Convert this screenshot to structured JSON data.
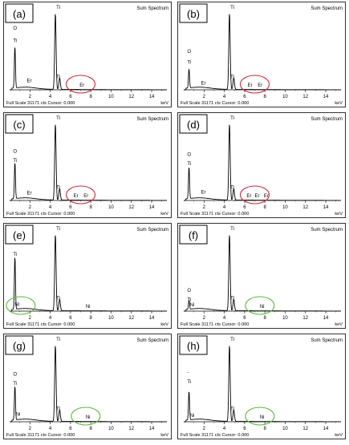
{
  "figure": {
    "spectrum_title": "Sum Spectrum",
    "footer": "Full Scale 31171 cts Cursor: 0.000",
    "unit": "keV"
  },
  "chart_data": [
    {
      "type": "line",
      "panel": "(a)",
      "title": "Sum Spectrum",
      "xlabel": "keV",
      "xlim": [
        0,
        15.5
      ],
      "ylim": [
        0,
        31171
      ],
      "x_ticks": [
        2,
        4,
        6,
        8,
        10,
        12,
        14
      ],
      "series": [
        {
          "peaks": [
            {
              "element": "O",
              "keV": 0.52,
              "height": 0.55
            },
            {
              "element": "Ti",
              "keV": 4.51,
              "height": 1.0
            },
            {
              "element": "Ti",
              "keV": 4.93,
              "height": 0.15
            }
          ]
        }
      ],
      "labels": [
        {
          "text": "O",
          "keV": 0.35,
          "level": 0.78
        },
        {
          "text": "Ti",
          "keV": 0.35,
          "level": 0.62
        },
        {
          "text": "Er",
          "keV": 1.7,
          "level": 0.1
        },
        {
          "text": "Ti",
          "keV": 4.6,
          "level": 1.05
        },
        {
          "text": "Ti",
          "keV": 4.6,
          "level": 0.15
        },
        {
          "text": "Er",
          "keV": 6.9,
          "level": 0.04
        }
      ],
      "highlight": {
        "center_keV": 7.0,
        "color": "#cc2a36"
      }
    },
    {
      "type": "line",
      "panel": "(b)",
      "title": "Sum Spectrum",
      "xlabel": "keV",
      "xlim": [
        0,
        15.5
      ],
      "ylim": [
        0,
        31171
      ],
      "x_ticks": [
        2,
        4,
        6,
        8,
        10,
        12,
        14
      ],
      "series": [
        {
          "peaks": [
            {
              "element": "O",
              "keV": 0.52,
              "height": 0.25
            },
            {
              "element": "Ti",
              "keV": 4.51,
              "height": 1.0
            },
            {
              "element": "Ti",
              "keV": 4.93,
              "height": 0.15
            }
          ]
        }
      ],
      "labels": [
        {
          "text": "O",
          "keV": 0.35,
          "level": 0.48
        },
        {
          "text": "Ti",
          "keV": 0.35,
          "level": 0.34
        },
        {
          "text": "Er",
          "keV": 1.7,
          "level": 0.07
        },
        {
          "text": "Ti",
          "keV": 4.6,
          "level": 1.05
        },
        {
          "text": "Ti",
          "keV": 4.6,
          "level": 0.15
        },
        {
          "text": "Er",
          "keV": 6.3,
          "level": 0.04
        },
        {
          "text": "Er",
          "keV": 7.3,
          "level": 0.04
        }
      ],
      "highlight": {
        "center_keV": 7.0,
        "color": "#cc2a36"
      }
    },
    {
      "type": "line",
      "panel": "(c)",
      "title": "Sum Spectrum",
      "xlabel": "keV",
      "xlim": [
        0,
        15.5
      ],
      "ylim": [
        0,
        31171
      ],
      "x_ticks": [
        2,
        4,
        6,
        8,
        10,
        12,
        14
      ],
      "series": [
        {
          "peaks": [
            {
              "element": "O",
              "keV": 0.52,
              "height": 0.48
            },
            {
              "element": "Ti",
              "keV": 4.51,
              "height": 1.0
            },
            {
              "element": "Ti",
              "keV": 4.93,
              "height": 0.15
            }
          ]
        }
      ],
      "labels": [
        {
          "text": "O",
          "keV": 0.35,
          "level": 0.62
        },
        {
          "text": "Ti",
          "keV": 0.35,
          "level": 0.5
        },
        {
          "text": "Er",
          "keV": 1.7,
          "level": 0.08
        },
        {
          "text": "Ti",
          "keV": 4.6,
          "level": 1.05
        },
        {
          "text": "Ti",
          "keV": 4.6,
          "level": 0.15
        },
        {
          "text": "Er",
          "keV": 6.3,
          "level": 0.04
        },
        {
          "text": "Er",
          "keV": 7.3,
          "level": 0.04
        }
      ],
      "highlight": {
        "center_keV": 7.0,
        "color": "#cc2a36"
      }
    },
    {
      "type": "line",
      "panel": "(d)",
      "title": "Sum Spectrum",
      "xlabel": "keV",
      "xlim": [
        0,
        15.5
      ],
      "ylim": [
        0,
        31171
      ],
      "x_ticks": [
        2,
        4,
        6,
        8,
        10,
        12,
        14
      ],
      "series": [
        {
          "peaks": [
            {
              "element": "O",
              "keV": 0.52,
              "height": 0.42
            },
            {
              "element": "Ti",
              "keV": 4.51,
              "height": 1.0
            },
            {
              "element": "Ti",
              "keV": 4.93,
              "height": 0.15
            }
          ]
        }
      ],
      "labels": [
        {
          "text": "O",
          "keV": 0.35,
          "level": 0.58
        },
        {
          "text": "Ti",
          "keV": 0.35,
          "level": 0.46
        },
        {
          "text": "Er",
          "keV": 1.7,
          "level": 0.09
        },
        {
          "text": "Ti",
          "keV": 4.6,
          "level": 1.05
        },
        {
          "text": "Ti",
          "keV": 4.6,
          "level": 0.15
        },
        {
          "text": "Er",
          "keV": 6.2,
          "level": 0.04
        },
        {
          "text": "Er",
          "keV": 7.0,
          "level": 0.04
        },
        {
          "text": "Er",
          "keV": 7.9,
          "level": 0.04
        }
      ],
      "highlight": {
        "center_keV": 7.0,
        "color": "#cc2a36"
      }
    },
    {
      "type": "line",
      "panel": "(e)",
      "title": "Sum Spectrum",
      "xlabel": "keV",
      "xlim": [
        0,
        15.5
      ],
      "ylim": [
        0,
        31171
      ],
      "x_ticks": [
        2,
        4,
        6,
        8,
        10,
        12,
        14
      ],
      "series": [
        {
          "peaks": [
            {
              "element": "O",
              "keV": 0.52,
              "height": 0.7
            },
            {
              "element": "Ti",
              "keV": 4.51,
              "height": 1.0
            },
            {
              "element": "Ti",
              "keV": 4.93,
              "height": 0.15
            }
          ]
        }
      ],
      "labels": [
        {
          "text": "Ti",
          "keV": 0.35,
          "level": 0.72
        },
        {
          "text": "Ni",
          "keV": 0.5,
          "level": 0.07
        },
        {
          "text": "Ti",
          "keV": 4.6,
          "level": 1.05
        },
        {
          "text": "Ti",
          "keV": 4.6,
          "level": 0.15
        },
        {
          "text": "Ni",
          "keV": 7.5,
          "level": 0.04
        }
      ],
      "highlight": {
        "center_keV": 1.1,
        "color": "#5cb83a"
      }
    },
    {
      "type": "line",
      "panel": "(f)",
      "title": "Sum Spectrum",
      "xlabel": "keV",
      "xlim": [
        0,
        15.5
      ],
      "ylim": [
        0,
        31171
      ],
      "x_ticks": [
        2,
        4,
        6,
        8,
        10,
        12,
        14
      ],
      "series": [
        {
          "peaks": [
            {
              "element": "O",
              "keV": 0.52,
              "height": 0.12
            },
            {
              "element": "Ti",
              "keV": 4.51,
              "height": 1.0
            },
            {
              "element": "Ti",
              "keV": 4.93,
              "height": 0.15
            }
          ]
        }
      ],
      "labels": [
        {
          "text": "O",
          "keV": 0.35,
          "level": 0.25
        },
        {
          "text": "Ti",
          "keV": 0.35,
          "level": 0.13
        },
        {
          "text": "Ni",
          "keV": 0.6,
          "level": 0.06
        },
        {
          "text": "Ti",
          "keV": 4.6,
          "level": 1.05
        },
        {
          "text": "Ti",
          "keV": 4.6,
          "level": 0.15
        },
        {
          "text": "Ni",
          "keV": 7.5,
          "level": 0.04
        }
      ],
      "highlight": {
        "center_keV": 7.5,
        "color": "#5cb83a"
      }
    },
    {
      "type": "line",
      "panel": "(g)",
      "title": "Sum Spectrum",
      "xlabel": "keV",
      "xlim": [
        0,
        15.5
      ],
      "ylim": [
        0,
        31171
      ],
      "x_ticks": [
        2,
        4,
        6,
        8,
        10,
        12,
        14
      ],
      "series": [
        {
          "peaks": [
            {
              "element": "O",
              "keV": 0.52,
              "height": 0.45
            },
            {
              "element": "Ti",
              "keV": 4.51,
              "height": 1.0
            },
            {
              "element": "Ti",
              "keV": 4.93,
              "height": 0.15
            }
          ]
        }
      ],
      "labels": [
        {
          "text": "O",
          "keV": 0.35,
          "level": 0.6
        },
        {
          "text": "Ti",
          "keV": 0.35,
          "level": 0.48
        },
        {
          "text": "Ni",
          "keV": 0.6,
          "level": 0.08
        },
        {
          "text": "Ti",
          "keV": 4.6,
          "level": 1.05
        },
        {
          "text": "Ti",
          "keV": 4.6,
          "level": 0.15
        },
        {
          "text": "Ni",
          "keV": 7.5,
          "level": 0.04
        }
      ],
      "highlight": {
        "center_keV": 7.5,
        "color": "#5cb83a"
      }
    },
    {
      "type": "line",
      "panel": "(h)",
      "title": "Sum Spectrum",
      "xlabel": "keV",
      "xlim": [
        0,
        15.5
      ],
      "ylim": [
        0,
        31171
      ],
      "x_ticks": [
        2,
        4,
        6,
        8,
        10,
        12,
        14
      ],
      "series": [
        {
          "peaks": [
            {
              "element": "O",
              "keV": 0.52,
              "height": 0.38
            },
            {
              "element": "Ti",
              "keV": 4.51,
              "height": 1.0
            },
            {
              "element": "Ti",
              "keV": 4.93,
              "height": 0.15
            }
          ]
        }
      ],
      "labels": [
        {
          "text": "-",
          "keV": 0.35,
          "level": 0.62
        },
        {
          "text": "Ti",
          "keV": 0.35,
          "level": 0.5
        },
        {
          "text": "Ni",
          "keV": 0.6,
          "level": 0.06
        },
        {
          "text": "Ti",
          "keV": 4.6,
          "level": 1.05
        },
        {
          "text": "Ti",
          "keV": 4.6,
          "level": 0.15
        },
        {
          "text": "Ni",
          "keV": 7.5,
          "level": 0.04
        }
      ],
      "highlight": {
        "center_keV": 7.5,
        "color": "#5cb83a"
      }
    }
  ]
}
